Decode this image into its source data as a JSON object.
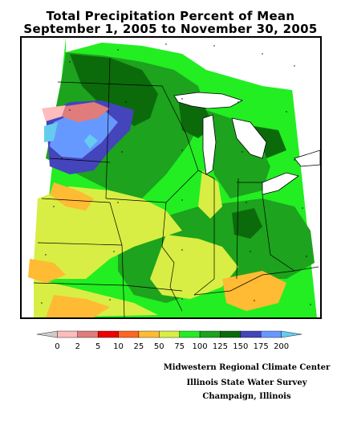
{
  "title": {
    "line1": "Total Precipitation Percent of Mean",
    "line2": "September 1, 2005 to November 30, 2005"
  },
  "map": {
    "region": "Midwest United States",
    "palette": {
      "white": "#ffffff",
      "cat_0": "#c8c8c8",
      "cat_2": "#ffbcbc",
      "cat_5": "#e07c7c",
      "cat_10": "#ee0000",
      "cat_25": "#ff6622",
      "cat_50": "#ffbb33",
      "cat_75": "#d8ee44",
      "cat_100": "#22ee22",
      "cat_125": "#1da31d",
      "cat_150": "#0b6b0b",
      "cat_175": "#4444bb",
      "cat_200": "#6699ff",
      "over_200": "#66ccee",
      "boundary": "#000000",
      "lake_line": "#000000",
      "grid_dots": "#000000"
    }
  },
  "legend": {
    "labels": [
      "0",
      "2",
      "5",
      "10",
      "25",
      "50",
      "75",
      "100",
      "125",
      "150",
      "175",
      "200"
    ],
    "colors": [
      "#cccccc",
      "#ffbcbc",
      "#e07c7c",
      "#ee0000",
      "#ff6622",
      "#ffbb33",
      "#d8ee44",
      "#22ee22",
      "#1da31d",
      "#0b6b0b",
      "#4444bb",
      "#6699ff",
      "#66ccee"
    ]
  },
  "credits": {
    "line1": "Midwestern Regional Climate Center",
    "line2": "Illinois State Water Survey",
    "line3": "Champaign, Illinois"
  }
}
